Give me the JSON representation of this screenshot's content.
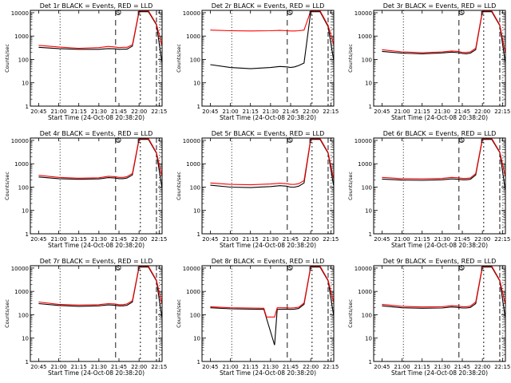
{
  "figure": {
    "background": "#ffffff"
  },
  "style": {
    "black_color": "#000000",
    "red_color": "#ff0000"
  },
  "common": {
    "ylabel": "Counts/sec",
    "xlabel": "Start Time (24-Oct-08 20:38:20)",
    "ytick_labels": [
      "1",
      "10",
      "100",
      "1000",
      "10000"
    ],
    "xtick_labels": [
      "20:45",
      "21:00",
      "21:15",
      "21:30",
      "21:45",
      "22:00",
      "22:15"
    ],
    "marker_S": "S",
    "marker_E": "E"
  },
  "chart_data": [
    {
      "type": "line",
      "title": "Det 1r BLACK = Events, RED = LLD",
      "ylim": [
        1,
        10000
      ],
      "yscale": "log",
      "xlim_minutes": [
        20.66,
        22.27
      ],
      "x_minutes_from_2045": [
        0,
        15,
        30,
        45,
        52,
        57,
        60,
        63,
        66,
        70,
        75,
        82,
        88,
        92
      ],
      "series": [
        {
          "color": "red",
          "values": [
            400,
            340,
            300,
            320,
            360,
            340,
            320,
            330,
            330,
            420,
            12000,
            12000,
            3200,
            400
          ]
        },
        {
          "color": "black",
          "values": [
            330,
            290,
            270,
            270,
            290,
            285,
            270,
            275,
            275,
            370,
            11000,
            11000,
            3000,
            80
          ]
        }
      ]
    },
    {
      "type": "line",
      "title": "Det 2r BLACK = Events, RED = LLD",
      "ylim": [
        1,
        10000
      ],
      "yscale": "log",
      "x_minutes_from_2045": [
        0,
        15,
        30,
        45,
        52,
        57,
        60,
        63,
        66,
        70,
        75,
        82,
        88,
        92
      ],
      "series": [
        {
          "color": "red",
          "values": [
            1800,
            1700,
            1650,
            1700,
            1750,
            1700,
            1650,
            1650,
            1700,
            1800,
            12000,
            12000,
            2800,
            450
          ]
        },
        {
          "color": "black",
          "values": [
            60,
            45,
            40,
            45,
            50,
            48,
            45,
            48,
            55,
            70,
            11000,
            11000,
            2500,
            100
          ]
        }
      ]
    },
    {
      "type": "line",
      "title": "Det 3r BLACK = Events, RED = LLD",
      "ylim": [
        1,
        10000
      ],
      "yscale": "log",
      "x_minutes_from_2045": [
        0,
        15,
        30,
        45,
        52,
        57,
        60,
        63,
        66,
        70,
        75,
        82,
        88,
        92
      ],
      "series": [
        {
          "color": "red",
          "values": [
            260,
            210,
            195,
            210,
            230,
            220,
            200,
            200,
            210,
            300,
            12000,
            12000,
            3000,
            200
          ]
        },
        {
          "color": "black",
          "values": [
            220,
            185,
            175,
            190,
            205,
            195,
            180,
            175,
            185,
            260,
            11000,
            11000,
            2800,
            80
          ]
        }
      ]
    },
    {
      "type": "line",
      "title": "Det 4r BLACK = Events, RED = LLD",
      "ylim": [
        1,
        10000
      ],
      "yscale": "log",
      "x_minutes_from_2045": [
        0,
        15,
        30,
        45,
        52,
        57,
        60,
        63,
        66,
        70,
        75,
        82,
        88,
        92
      ],
      "series": [
        {
          "color": "red",
          "values": [
            320,
            260,
            240,
            250,
            290,
            280,
            260,
            260,
            280,
            380,
            12000,
            12000,
            3000,
            300
          ]
        },
        {
          "color": "black",
          "values": [
            270,
            230,
            215,
            225,
            255,
            245,
            230,
            230,
            245,
            330,
            11000,
            11000,
            2800,
            100
          ]
        }
      ]
    },
    {
      "type": "line",
      "title": "Det 5r BLACK = Events, RED = LLD",
      "ylim": [
        1,
        10000
      ],
      "yscale": "log",
      "x_minutes_from_2045": [
        0,
        15,
        30,
        45,
        52,
        57,
        60,
        63,
        66,
        70,
        75,
        82,
        88,
        92
      ],
      "series": [
        {
          "color": "red",
          "values": [
            150,
            130,
            125,
            135,
            145,
            140,
            130,
            130,
            140,
            190,
            12000,
            12000,
            3000,
            230
          ]
        },
        {
          "color": "black",
          "values": [
            120,
            100,
            95,
            105,
            115,
            110,
            100,
            100,
            110,
            150,
            11000,
            11000,
            2800,
            120
          ]
        }
      ]
    },
    {
      "type": "line",
      "title": "Det 6r BLACK = Events, RED = LLD",
      "ylim": [
        1,
        10000
      ],
      "yscale": "log",
      "x_minutes_from_2045": [
        0,
        15,
        30,
        45,
        52,
        57,
        60,
        63,
        66,
        70,
        75,
        82,
        88,
        92
      ],
      "series": [
        {
          "color": "red",
          "values": [
            260,
            230,
            225,
            235,
            260,
            250,
            235,
            235,
            245,
            380,
            12000,
            12000,
            3200,
            300
          ]
        },
        {
          "color": "black",
          "values": [
            220,
            200,
            195,
            205,
            225,
            215,
            205,
            205,
            215,
            330,
            11000,
            11000,
            3000,
            80
          ]
        }
      ]
    },
    {
      "type": "line",
      "title": "Det 7r BLACK = Events, RED = LLD",
      "ylim": [
        1,
        10000
      ],
      "yscale": "log",
      "x_minutes_from_2045": [
        0,
        15,
        30,
        45,
        52,
        57,
        60,
        63,
        66,
        70,
        75,
        82,
        88,
        92
      ],
      "series": [
        {
          "color": "red",
          "values": [
            350,
            280,
            260,
            270,
            300,
            290,
            270,
            270,
            290,
            400,
            12000,
            12000,
            3000,
            300
          ]
        },
        {
          "color": "black",
          "values": [
            300,
            250,
            230,
            240,
            265,
            255,
            240,
            240,
            255,
            350,
            11000,
            11000,
            2800,
            80
          ]
        }
      ]
    },
    {
      "type": "line",
      "title": "Det 8r BLACK = Events, RED = LLD",
      "ylim": [
        1,
        10000
      ],
      "yscale": "log",
      "x_minutes_from_2045": [
        0,
        15,
        30,
        40,
        42,
        48,
        50,
        57,
        60,
        63,
        66,
        70,
        75,
        82,
        88,
        92
      ],
      "series": [
        {
          "color": "red",
          "values": [
            220,
            200,
            195,
            190,
            80,
            80,
            200,
            200,
            195,
            200,
            210,
            320,
            12000,
            12000,
            3000,
            350
          ]
        },
        {
          "color": "black",
          "values": [
            200,
            180,
            175,
            170,
            70,
            5,
            170,
            175,
            170,
            175,
            185,
            280,
            11000,
            11000,
            2800,
            100
          ]
        }
      ]
    },
    {
      "type": "line",
      "title": "Det 9r BLACK = Events, RED = LLD",
      "ylim": [
        1,
        10000
      ],
      "yscale": "log",
      "x_minutes_from_2045": [
        0,
        15,
        30,
        45,
        52,
        57,
        60,
        63,
        66,
        70,
        75,
        82,
        88,
        92
      ],
      "series": [
        {
          "color": "red",
          "values": [
            280,
            230,
            215,
            220,
            245,
            235,
            220,
            220,
            235,
            350,
            12000,
            12000,
            3000,
            300
          ]
        },
        {
          "color": "black",
          "values": [
            240,
            200,
            190,
            195,
            215,
            205,
            195,
            195,
            205,
            300,
            11000,
            11000,
            2800,
            80
          ]
        }
      ]
    }
  ]
}
